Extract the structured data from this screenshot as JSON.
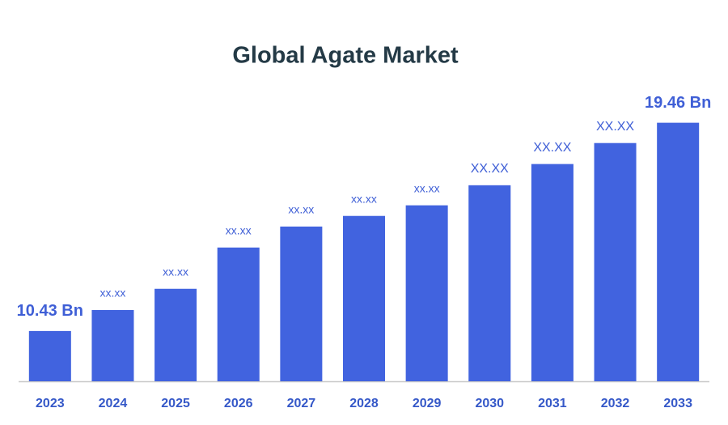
{
  "chart_data": {
    "type": "bar",
    "title": "Global Agate Market",
    "categories": [
      "2023",
      "2024",
      "2025",
      "2026",
      "2027",
      "2028",
      "2029",
      "2030",
      "2031",
      "2032",
      "2033"
    ],
    "values": [
      10.43,
      11.34,
      12.26,
      14.05,
      14.96,
      15.42,
      15.88,
      16.75,
      17.67,
      18.58,
      19.46
    ],
    "value_labels": [
      "10.43 Bn",
      "xx.xx",
      "xx.xx",
      "xx.xx",
      "xx.xx",
      "xx.xx",
      "xx.xx",
      "XX.XX",
      "XX.XX",
      "XX.XX",
      "19.46 Bn"
    ],
    "color": "#4163df",
    "ylim": [
      8.25,
      20.5
    ]
  }
}
